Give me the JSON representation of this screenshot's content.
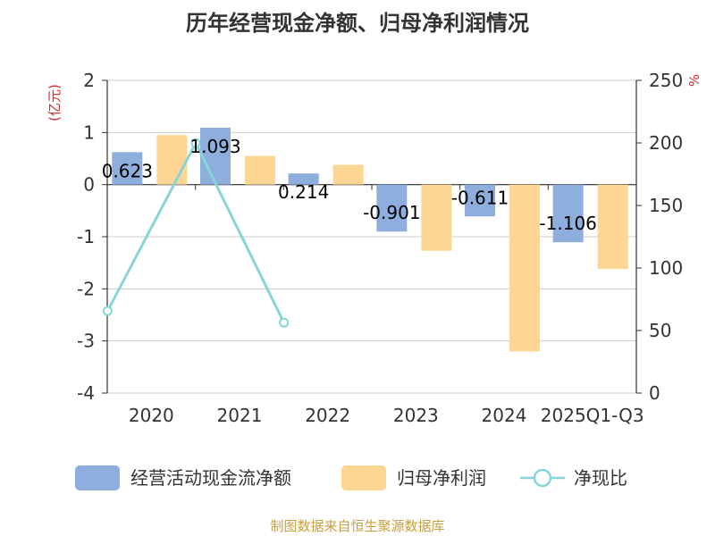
{
  "chart_data": {
    "type": "bar",
    "title": "历年经营现金净额、归母净利润情况",
    "categories": [
      "2020",
      "2021",
      "2022",
      "2023",
      "2024",
      "2025Q1-Q3"
    ],
    "series": [
      {
        "name": "经营活动现金流净额",
        "type": "bar",
        "axis": "left",
        "color": "#8eaedd",
        "values": [
          0.623,
          1.093,
          0.214,
          -0.901,
          -0.611,
          -1.106
        ],
        "labels": [
          "0.623",
          "1.093",
          "0.214",
          "-0.901",
          "-0.611",
          "-1.106"
        ]
      },
      {
        "name": "归母净利润",
        "type": "bar",
        "axis": "left",
        "color": "#fdd693",
        "values": [
          0.95,
          0.55,
          0.38,
          -1.27,
          -3.2,
          -1.62
        ]
      },
      {
        "name": "净现比",
        "type": "line",
        "axis": "right",
        "color": "#88d4d8",
        "values": [
          65.6,
          199.9,
          56.3,
          null,
          null,
          null
        ]
      }
    ],
    "yleft": {
      "unit": "(亿元)",
      "ylim": [
        -4,
        2
      ],
      "ticks": [
        "2",
        "1",
        "0",
        "-1",
        "-2",
        "-3",
        "-4"
      ]
    },
    "yright": {
      "unit": "%",
      "ylim": [
        0,
        250
      ],
      "ticks": [
        "250",
        "200",
        "150",
        "100",
        "50",
        "0"
      ]
    },
    "grid": true,
    "legend_position": "bottom"
  },
  "source": "制图数据来自恒生聚源数据库"
}
